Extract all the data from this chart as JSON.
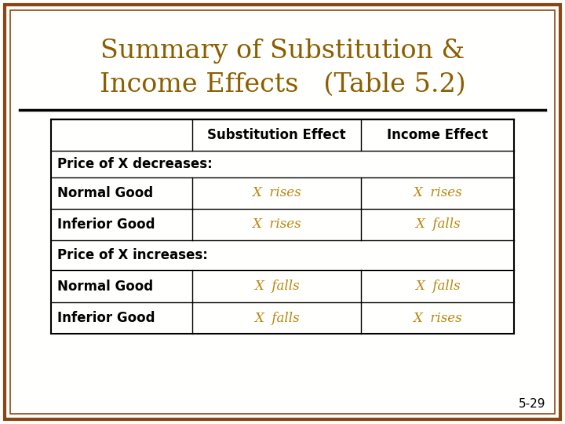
{
  "title_line1": "Summary of Substitution &",
  "title_line2": "Income Effects   (Table 5.2)",
  "title_color": "#8B5E00",
  "background_color": "#FFFFFE",
  "border_color": "#8B4513",
  "page_num": "5-29",
  "col_headers": [
    "Substitution Effect",
    "Income Effect"
  ],
  "row_section1": "Price of X decreases:",
  "row_section2": "Price of X increases:",
  "rows": [
    {
      "label": "Normal Good",
      "sub": "X  rises",
      "inc": "X  rises"
    },
    {
      "label": "Inferior Good",
      "sub": "X  rises",
      "inc": "X  falls"
    },
    {
      "label": "Normal Good",
      "sub": "X  falls",
      "inc": "X  falls"
    },
    {
      "label": "Inferior Good",
      "sub": "X  falls",
      "inc": "X  rises"
    }
  ],
  "cell_text_color": "#B8860B",
  "header_text_color": "#000000",
  "table_line_color": "#000000",
  "label_bold_color": "#000000",
  "figsize": [
    7.2,
    5.4
  ],
  "dpi": 100
}
